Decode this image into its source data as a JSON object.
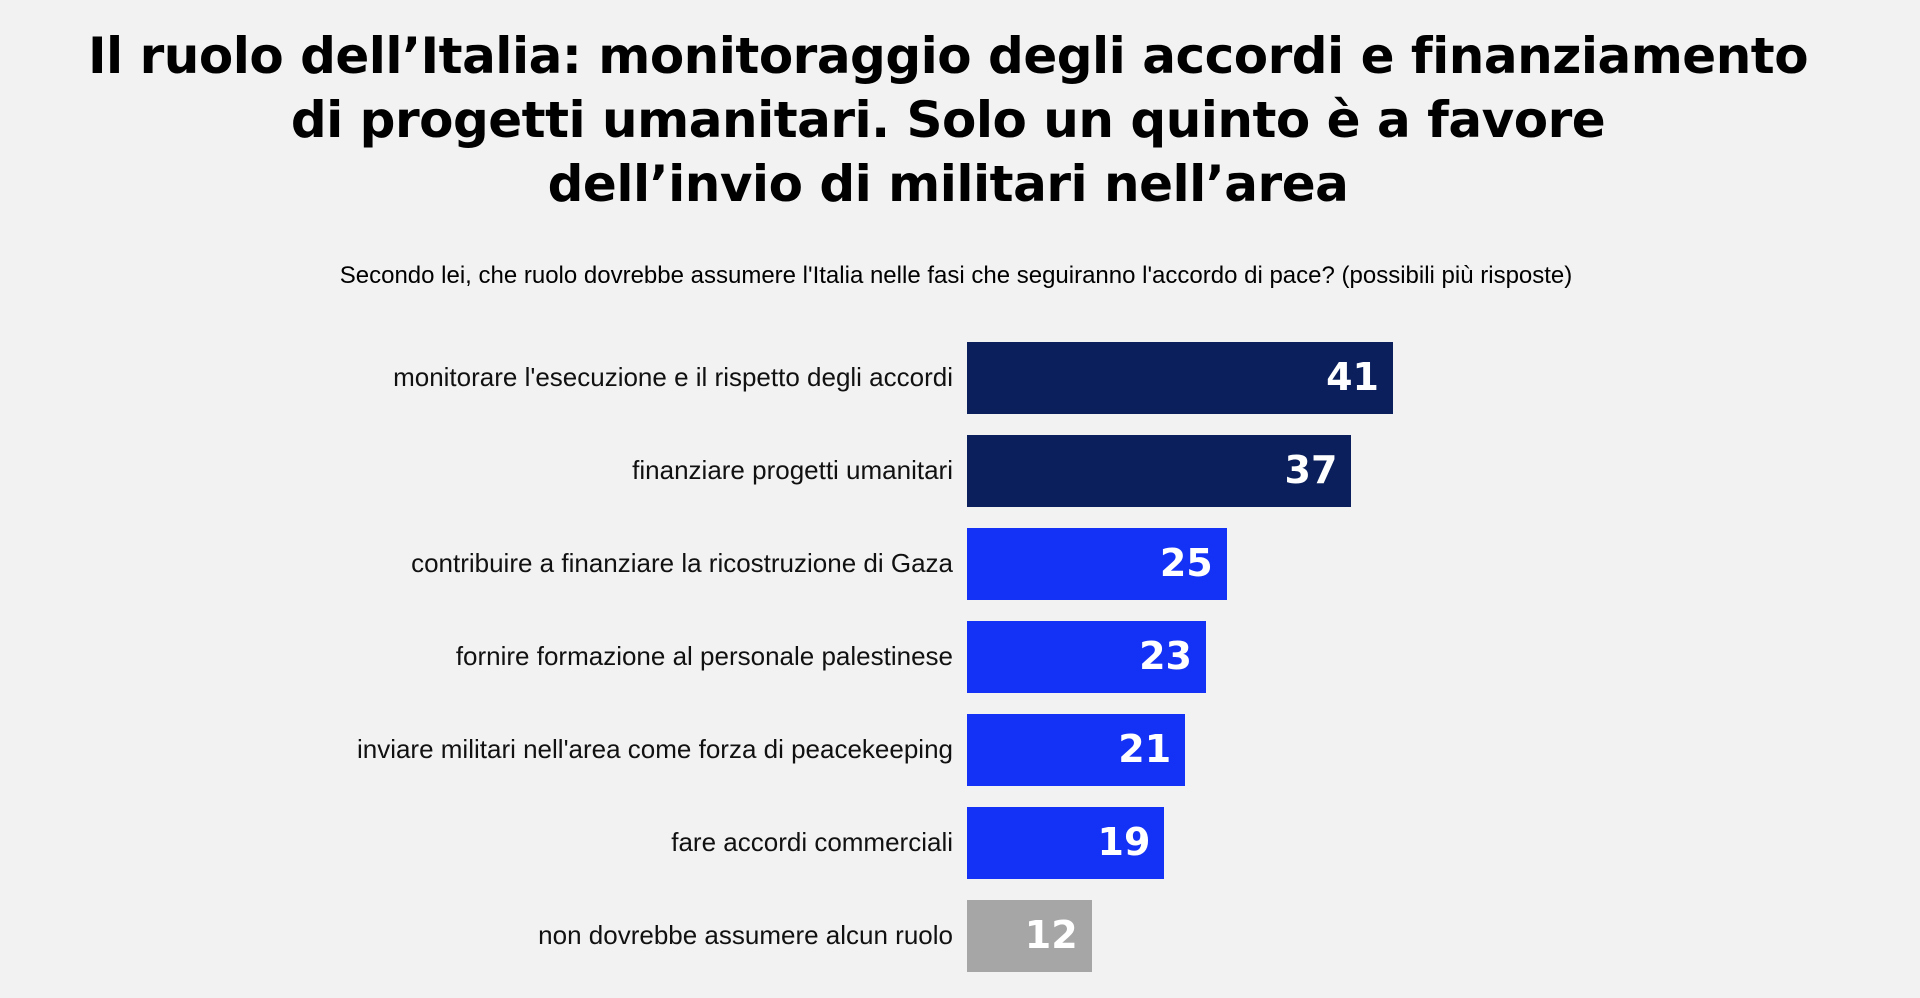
{
  "chart_data": {
    "type": "bar",
    "orientation": "horizontal",
    "title_lines": [
      "Il ruolo dell’Italia: monitoraggio degli accordi e finanziamento",
      "di progetti umanitari. Solo un quinto è a favore",
      "dell’invio di militari nell’area"
    ],
    "subtitle": "Secondo lei, che ruolo dovrebbe assumere l'Italia nelle fasi che seguiranno l'accordo di pace? (possibili più risposte)",
    "categories": [
      "monitorare l'esecuzione e il rispetto degli accordi",
      "finanziare progetti umanitari",
      "contribuire a finanziare la ricostruzione di Gaza",
      "fornire formazione al personale palestinese",
      "inviare militari nell'area come forza di peacekeeping",
      "fare accordi commerciali",
      "non dovrebbe assumere alcun ruolo"
    ],
    "values": [
      41,
      37,
      25,
      23,
      21,
      19,
      12
    ],
    "colors": [
      "#0a1f5c",
      "#0a1f5c",
      "#1432f5",
      "#1432f5",
      "#1432f5",
      "#1432f5",
      "#a6a6a6"
    ],
    "xlabel": "",
    "ylabel": "",
    "xlim": [
      0,
      41
    ],
    "grid": false,
    "legend": "none"
  }
}
